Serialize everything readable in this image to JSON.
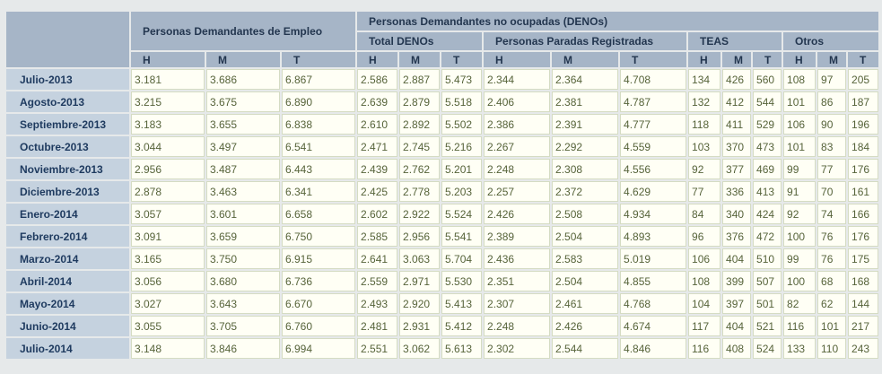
{
  "header": {
    "main_title": "Personas Demandantes de Empleo",
    "deno_title": "Personas Demandantes no ocupadas (DENOs)",
    "groups": [
      "Total DENOs",
      "Personas Paradas Registradas",
      "TEAS",
      "Otros"
    ],
    "subcols": [
      "H",
      "M",
      "T",
      "H",
      "M",
      "T",
      "H",
      "M",
      "T",
      "H",
      "M",
      "T",
      "H",
      "M",
      "T"
    ]
  },
  "rows": [
    {
      "month": "Julio-2013",
      "values": [
        "3.181",
        "3.686",
        "6.867",
        "2.586",
        "2.887",
        "5.473",
        "2.344",
        "2.364",
        "4.708",
        "134",
        "426",
        "560",
        "108",
        "97",
        "205"
      ]
    },
    {
      "month": "Agosto-2013",
      "values": [
        "3.215",
        "3.675",
        "6.890",
        "2.639",
        "2.879",
        "5.518",
        "2.406",
        "2.381",
        "4.787",
        "132",
        "412",
        "544",
        "101",
        "86",
        "187"
      ]
    },
    {
      "month": "Septiembre-2013",
      "values": [
        "3.183",
        "3.655",
        "6.838",
        "2.610",
        "2.892",
        "5.502",
        "2.386",
        "2.391",
        "4.777",
        "118",
        "411",
        "529",
        "106",
        "90",
        "196"
      ]
    },
    {
      "month": "Octubre-2013",
      "values": [
        "3.044",
        "3.497",
        "6.541",
        "2.471",
        "2.745",
        "5.216",
        "2.267",
        "2.292",
        "4.559",
        "103",
        "370",
        "473",
        "101",
        "83",
        "184"
      ]
    },
    {
      "month": "Noviembre-2013",
      "values": [
        "2.956",
        "3.487",
        "6.443",
        "2.439",
        "2.762",
        "5.201",
        "2.248",
        "2.308",
        "4.556",
        "92",
        "377",
        "469",
        "99",
        "77",
        "176"
      ]
    },
    {
      "month": "Diciembre-2013",
      "values": [
        "2.878",
        "3.463",
        "6.341",
        "2.425",
        "2.778",
        "5.203",
        "2.257",
        "2.372",
        "4.629",
        "77",
        "336",
        "413",
        "91",
        "70",
        "161"
      ]
    },
    {
      "month": "Enero-2014",
      "values": [
        "3.057",
        "3.601",
        "6.658",
        "2.602",
        "2.922",
        "5.524",
        "2.426",
        "2.508",
        "4.934",
        "84",
        "340",
        "424",
        "92",
        "74",
        "166"
      ]
    },
    {
      "month": "Febrero-2014",
      "values": [
        "3.091",
        "3.659",
        "6.750",
        "2.585",
        "2.956",
        "5.541",
        "2.389",
        "2.504",
        "4.893",
        "96",
        "376",
        "472",
        "100",
        "76",
        "176"
      ]
    },
    {
      "month": "Marzo-2014",
      "values": [
        "3.165",
        "3.750",
        "6.915",
        "2.641",
        "3.063",
        "5.704",
        "2.436",
        "2.583",
        "5.019",
        "106",
        "404",
        "510",
        "99",
        "76",
        "175"
      ]
    },
    {
      "month": "Abril-2014",
      "values": [
        "3.056",
        "3.680",
        "6.736",
        "2.559",
        "2.971",
        "5.530",
        "2.351",
        "2.504",
        "4.855",
        "108",
        "399",
        "507",
        "100",
        "68",
        "168"
      ]
    },
    {
      "month": "Mayo-2014",
      "values": [
        "3.027",
        "3.643",
        "6.670",
        "2.493",
        "2.920",
        "5.413",
        "2.307",
        "2.461",
        "4.768",
        "104",
        "397",
        "501",
        "82",
        "62",
        "144"
      ]
    },
    {
      "month": "Junio-2014",
      "values": [
        "3.055",
        "3.705",
        "6.760",
        "2.481",
        "2.931",
        "5.412",
        "2.248",
        "2.426",
        "4.674",
        "117",
        "404",
        "521",
        "116",
        "101",
        "217"
      ]
    },
    {
      "month": "Julio-2014",
      "values": [
        "3.148",
        "3.846",
        "6.994",
        "2.551",
        "3.062",
        "5.613",
        "2.302",
        "2.544",
        "4.846",
        "116",
        "408",
        "524",
        "133",
        "110",
        "243"
      ]
    }
  ]
}
